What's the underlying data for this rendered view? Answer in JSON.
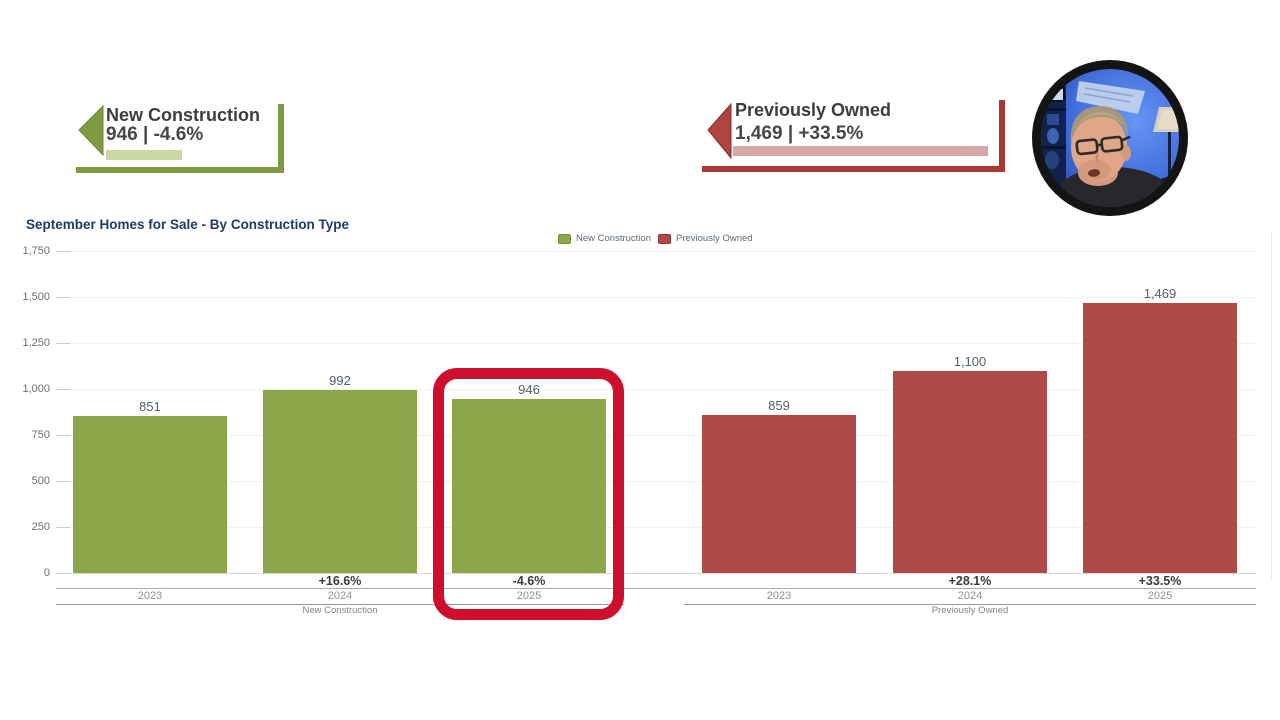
{
  "banners": {
    "new_construction": {
      "title": "New Construction",
      "stat": "946 | -4.6%",
      "accent": "#7d9b42",
      "pale": "#ccd8a4"
    },
    "previously_owned": {
      "title": "Previously Owned",
      "stat": "1,469 | +33.5%",
      "accent": "#a93734",
      "pale": "#d6a7a5"
    }
  },
  "chart_data": {
    "type": "bar",
    "title": "September Homes for Sale - By Construction Type",
    "legend": [
      {
        "label": "New Construction",
        "color": "#8CA74B"
      },
      {
        "label": "Previously Owned",
        "color": "#AE4A47"
      }
    ],
    "legend_position": "top",
    "grid": true,
    "ylim": [
      0,
      1750
    ],
    "yticks": [
      0,
      250,
      500,
      750,
      1000,
      1250,
      1500,
      1750
    ],
    "groups": [
      {
        "name": "New Construction",
        "color": "#8CA74B",
        "categories": [
          "2023",
          "2024",
          "2025"
        ],
        "values": [
          851,
          992,
          946
        ],
        "change_labels": [
          "",
          "+16.6%",
          "-4.6%"
        ]
      },
      {
        "name": "Previously Owned",
        "color": "#AE4A47",
        "categories": [
          "2023",
          "2024",
          "2025"
        ],
        "values": [
          859,
          1100,
          1469
        ],
        "change_labels": [
          "",
          "+28.1%",
          "+33.5%"
        ]
      }
    ],
    "highlight": {
      "group": 0,
      "category": 2,
      "color": "#ce0e2d"
    }
  },
  "webcam": {
    "description": "presenter webcam overlay"
  }
}
